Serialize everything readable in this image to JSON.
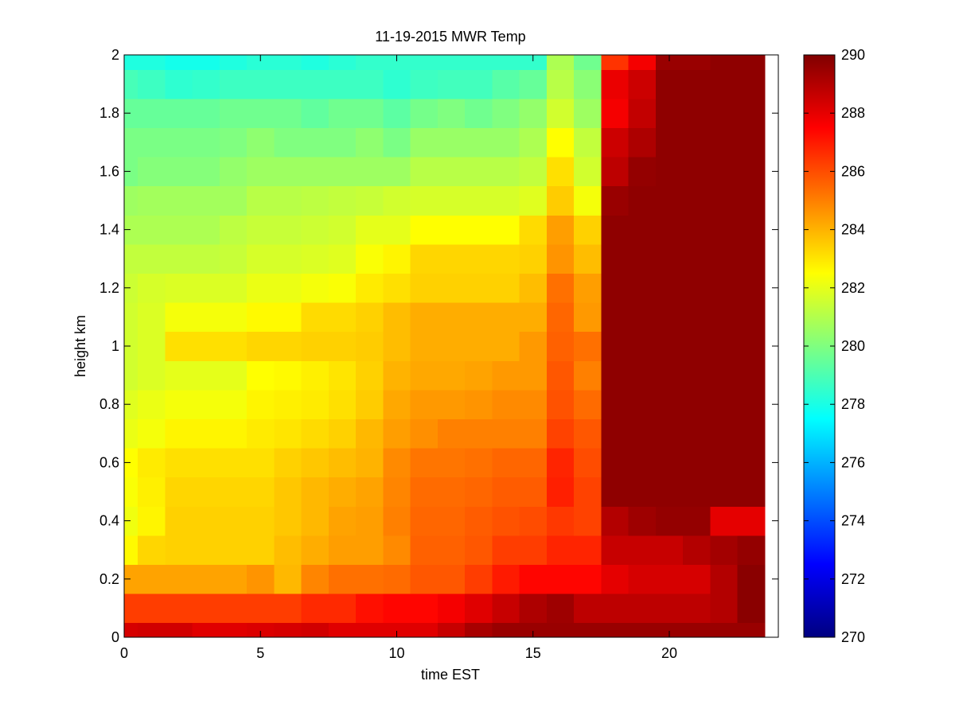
{
  "chart_data": {
    "type": "heatmap",
    "title": "11-19-2015 MWR Temp",
    "xlabel": "time EST",
    "ylabel": "height km",
    "xlim": [
      0,
      24
    ],
    "ylim": [
      0,
      2
    ],
    "x_ticks": [
      "0",
      "5",
      "10",
      "15",
      "20"
    ],
    "y_ticks": [
      "0",
      "0.2",
      "0.4",
      "0.6",
      "0.8",
      "1",
      "1.2",
      "1.4",
      "1.6",
      "1.8",
      "2"
    ],
    "colormap": "jet",
    "clim": [
      270,
      290
    ],
    "colorbar_ticks": [
      "270",
      "272",
      "274",
      "276",
      "278",
      "280",
      "282",
      "284",
      "286",
      "288",
      "290"
    ],
    "x_edges": [
      0,
      0.5,
      1.5,
      2.5,
      3.5,
      4.5,
      5.5,
      6.5,
      7.5,
      8.5,
      9.5,
      10.5,
      11.5,
      12.5,
      13.5,
      14.5,
      15.5,
      16.5,
      17.5,
      18.5,
      19.5,
      20.5,
      21.5,
      22.5,
      23.5
    ],
    "y_edges": [
      0,
      0.05,
      0.15,
      0.25,
      0.35,
      0.45,
      0.55,
      0.65,
      0.75,
      0.85,
      0.95,
      1.05,
      1.15,
      1.25,
      1.35,
      1.45,
      1.55,
      1.65,
      1.75,
      1.85,
      1.95,
      2
    ],
    "values": [
      [
        288.3,
        288.4,
        288.4,
        288.1,
        288.1,
        288.2,
        288.3,
        288.4,
        288.1,
        288.1,
        288.1,
        288.1,
        288.6,
        289.2,
        289.5,
        289.5,
        289.5,
        289.5,
        289.5,
        289.5,
        289.5,
        289.5,
        289.5,
        289.5
      ],
      [
        286.3,
        286.3,
        286.3,
        286.3,
        286.3,
        286.3,
        286.3,
        286.7,
        286.7,
        287.2,
        287.4,
        287.4,
        287.7,
        288.1,
        288.6,
        289.1,
        289.4,
        288.8,
        288.8,
        288.8,
        288.8,
        288.8,
        289.0,
        289.8
      ],
      [
        284.3,
        284.3,
        284.3,
        284.3,
        284.3,
        284.6,
        283.9,
        284.9,
        285.3,
        285.3,
        285.4,
        285.8,
        285.8,
        286.3,
        287.0,
        287.4,
        287.4,
        287.4,
        288.0,
        288.3,
        288.3,
        288.3,
        289.0,
        289.8
      ],
      [
        282.6,
        283.3,
        283.4,
        283.4,
        283.4,
        283.4,
        283.8,
        284.1,
        284.4,
        284.4,
        284.8,
        285.6,
        285.6,
        285.8,
        286.3,
        286.3,
        286.8,
        286.8,
        288.6,
        288.6,
        288.6,
        289.0,
        289.3,
        289.6
      ],
      [
        282.2,
        282.7,
        283.4,
        283.4,
        283.4,
        283.4,
        283.6,
        283.9,
        284.3,
        284.4,
        285.0,
        285.5,
        285.5,
        285.7,
        285.9,
        286.0,
        286.4,
        286.2,
        289.0,
        289.4,
        289.6,
        289.6,
        288.0,
        288.0
      ],
      [
        282.4,
        282.8,
        283.3,
        283.3,
        283.3,
        283.3,
        283.6,
        283.9,
        284.1,
        284.3,
        284.9,
        285.4,
        285.4,
        285.5,
        285.7,
        285.7,
        286.9,
        286.2,
        289.7,
        289.7,
        289.7,
        289.7,
        289.7,
        289.7
      ],
      [
        282.5,
        282.9,
        283.1,
        283.1,
        283.1,
        283.1,
        283.4,
        283.6,
        283.8,
        284.0,
        284.8,
        285.2,
        285.2,
        285.3,
        285.5,
        285.5,
        286.8,
        286.0,
        289.7,
        289.7,
        289.7,
        289.7,
        289.7,
        289.7
      ],
      [
        282.1,
        282.3,
        282.7,
        282.7,
        282.7,
        282.9,
        283.0,
        283.2,
        283.4,
        283.9,
        284.4,
        284.7,
        285.0,
        285.0,
        285.0,
        285.0,
        286.2,
        285.8,
        289.7,
        289.7,
        289.7,
        289.7,
        289.7,
        289.7
      ],
      [
        281.9,
        282.1,
        282.3,
        282.3,
        282.3,
        282.7,
        282.8,
        282.9,
        283.1,
        283.5,
        284.2,
        284.5,
        284.5,
        284.6,
        284.8,
        284.8,
        285.9,
        285.4,
        289.7,
        289.7,
        289.7,
        289.7,
        289.7,
        289.7
      ],
      [
        281.6,
        281.8,
        282.0,
        282.0,
        282.0,
        282.5,
        282.6,
        282.8,
        283.0,
        283.4,
        284.0,
        284.2,
        284.2,
        284.3,
        284.5,
        284.5,
        285.8,
        285.0,
        289.7,
        289.7,
        289.7,
        289.7,
        289.7,
        289.7
      ],
      [
        281.6,
        281.8,
        283.1,
        283.1,
        283.1,
        283.3,
        283.3,
        283.4,
        283.4,
        283.5,
        283.8,
        284.1,
        284.1,
        284.1,
        284.1,
        284.5,
        285.6,
        285.3,
        289.7,
        289.7,
        289.7,
        289.7,
        289.7,
        289.7
      ],
      [
        281.6,
        281.8,
        282.3,
        282.3,
        282.3,
        282.6,
        282.6,
        283.2,
        283.2,
        283.4,
        283.8,
        284.1,
        284.1,
        284.1,
        284.1,
        284.1,
        285.5,
        284.5,
        289.7,
        289.7,
        289.7,
        289.7,
        289.7,
        289.7
      ],
      [
        281.5,
        281.7,
        281.8,
        281.8,
        281.8,
        282.1,
        282.1,
        282.3,
        282.4,
        282.9,
        283.1,
        283.4,
        283.4,
        283.4,
        283.4,
        283.8,
        285.3,
        284.4,
        289.7,
        289.7,
        289.7,
        289.7,
        289.7,
        289.7
      ],
      [
        281.3,
        281.3,
        281.3,
        281.3,
        281.4,
        281.7,
        281.7,
        281.8,
        281.9,
        282.4,
        282.7,
        283.3,
        283.3,
        283.3,
        283.3,
        283.4,
        284.6,
        283.8,
        289.7,
        289.7,
        289.7,
        289.7,
        289.7,
        289.7
      ],
      [
        280.9,
        280.9,
        280.9,
        280.9,
        281.2,
        281.4,
        281.4,
        281.5,
        281.6,
        282.0,
        282.0,
        282.5,
        282.5,
        282.5,
        282.5,
        283.2,
        284.4,
        283.4,
        289.7,
        289.7,
        289.7,
        289.7,
        289.7,
        289.7
      ],
      [
        280.6,
        280.7,
        280.7,
        280.7,
        280.7,
        281.1,
        281.1,
        281.2,
        281.3,
        281.4,
        281.6,
        281.7,
        281.7,
        281.7,
        281.7,
        281.9,
        283.5,
        282.3,
        289.5,
        289.7,
        289.7,
        289.7,
        289.7,
        289.7
      ],
      [
        279.9,
        280.1,
        280.1,
        280.1,
        280.4,
        280.6,
        280.6,
        280.6,
        280.6,
        280.6,
        280.6,
        281.1,
        281.1,
        281.1,
        281.1,
        281.3,
        283.1,
        281.6,
        288.8,
        289.6,
        289.7,
        289.7,
        289.7,
        289.7
      ],
      [
        279.9,
        279.9,
        279.9,
        279.9,
        280.0,
        280.3,
        280.0,
        280.0,
        280.0,
        280.3,
        279.9,
        280.5,
        280.5,
        280.5,
        280.5,
        280.9,
        282.5,
        281.3,
        288.5,
        289.1,
        289.7,
        289.7,
        289.7,
        289.7
      ],
      [
        279.5,
        279.5,
        279.5,
        279.5,
        279.7,
        279.7,
        279.7,
        279.4,
        279.7,
        279.7,
        279.3,
        279.8,
        280.0,
        279.7,
        280.0,
        280.4,
        281.6,
        280.6,
        287.7,
        288.7,
        289.7,
        289.7,
        289.7,
        289.7
      ],
      [
        278.9,
        278.7,
        278.4,
        278.5,
        278.7,
        278.7,
        278.7,
        278.7,
        278.7,
        278.7,
        278.4,
        278.7,
        278.8,
        278.8,
        279.2,
        279.5,
        281.1,
        280.2,
        287.9,
        288.5,
        289.7,
        289.7,
        289.7,
        289.7
      ],
      [
        278.1,
        278.1,
        277.9,
        277.9,
        278.1,
        278.3,
        278.3,
        278.1,
        278.3,
        278.5,
        278.5,
        278.5,
        278.5,
        278.5,
        278.5,
        278.5,
        280.9,
        279.7,
        286.5,
        287.7,
        289.5,
        289.5,
        289.7,
        289.7
      ]
    ]
  }
}
